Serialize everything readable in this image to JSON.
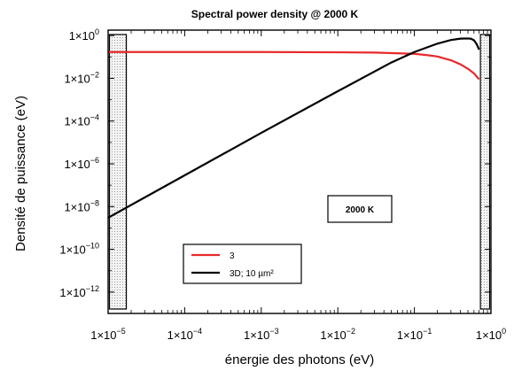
{
  "chart_data": {
    "type": "line",
    "title": "Spectral power density @ 2000 K",
    "xlabel": "énergie des photons (eV)",
    "ylabel": "Densité de puissance (eV)",
    "x_scale": "log",
    "y_scale": "log",
    "xlim": [
      1e-05,
      1
    ],
    "ylim": [
      1e-13,
      1.8
    ],
    "x_ticks": [
      {
        "mant": "1×10",
        "exp": "−5"
      },
      {
        "mant": "1×10",
        "exp": "−4"
      },
      {
        "mant": "1×10",
        "exp": "−3"
      },
      {
        "mant": "1×10",
        "exp": "−2"
      },
      {
        "mant": "1×10",
        "exp": "−1"
      },
      {
        "mant": "1×10",
        "exp": "0"
      }
    ],
    "y_ticks": [
      {
        "mant": "1×10",
        "exp": "0"
      },
      {
        "mant": "1×10",
        "exp": "−2"
      },
      {
        "mant": "1×10",
        "exp": "−4"
      },
      {
        "mant": "1×10",
        "exp": "−6"
      },
      {
        "mant": "1×10",
        "exp": "−8"
      },
      {
        "mant": "1×10",
        "exp": "−10"
      },
      {
        "mant": "1×10",
        "exp": "−12"
      }
    ],
    "x_tick_values": [
      1e-05,
      0.0001,
      0.001,
      0.01,
      0.1,
      1
    ],
    "y_tick_values": [
      1,
      0.01,
      0.0001,
      1e-06,
      1e-08,
      1e-10,
      1e-12
    ],
    "series": [
      {
        "name": "3",
        "color": "#e8292b",
        "x": [
          1e-05,
          0.0001,
          0.001,
          0.01,
          0.03,
          0.1,
          0.15,
          0.2,
          0.3,
          0.4,
          0.5,
          0.6,
          0.7
        ],
        "y": [
          0.17,
          0.17,
          0.17,
          0.165,
          0.16,
          0.14,
          0.12,
          0.105,
          0.07,
          0.045,
          0.028,
          0.017,
          0.009
        ]
      },
      {
        "name": "3D; 10 µm²",
        "color": "#000000",
        "x": [
          1e-05,
          0.0001,
          0.001,
          0.01,
          0.05,
          0.1,
          0.2,
          0.3,
          0.4,
          0.5,
          0.55,
          0.6,
          0.65,
          0.7
        ],
        "y": [
          3e-09,
          2.9e-07,
          2.8e-05,
          0.0025,
          0.055,
          0.17,
          0.42,
          0.62,
          0.72,
          0.73,
          0.71,
          0.6,
          0.4,
          0.22
        ]
      }
    ],
    "shaded_regions": [
      [
        1e-05,
        1.8e-05
      ],
      [
        0.7,
        1
      ]
    ],
    "annotation": "2000 K",
    "legend_placement": "bottom-left",
    "grid": false
  }
}
